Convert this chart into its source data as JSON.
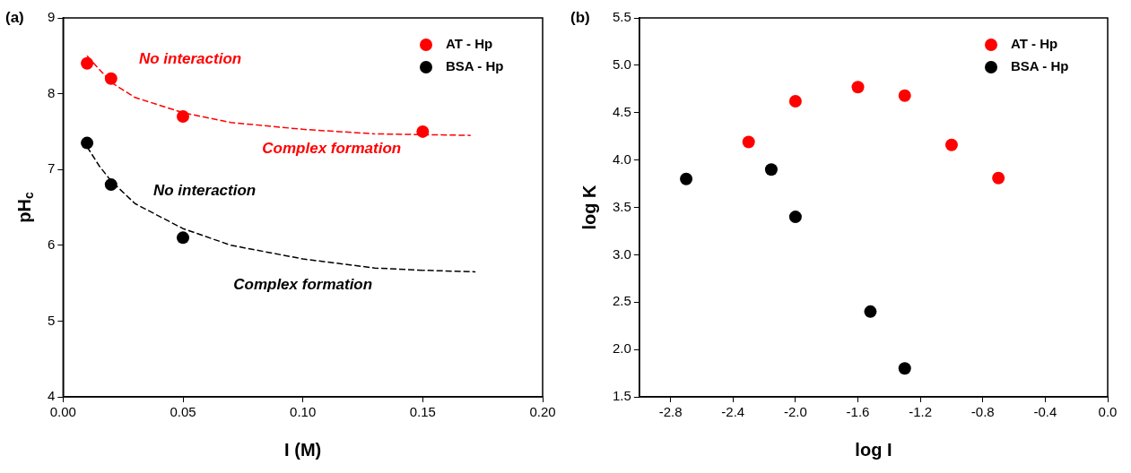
{
  "chart_data": [
    {
      "type": "scatter",
      "title": "(a)",
      "xlabel": "I (M)",
      "ylabel": "pH$_{c}$",
      "xlim": [
        0,
        0.2
      ],
      "xticks": [
        {
          "value": 0,
          "label": "0.00"
        },
        0.05,
        {
          "value": 0.1,
          "label": "0.10"
        },
        0.15,
        {
          "value": 0.2,
          "label": "0.20"
        }
      ],
      "ylim": [
        4,
        9
      ],
      "yticks": [
        4,
        5,
        6,
        7,
        8,
        9
      ],
      "grid": false,
      "legend": "top right",
      "marker": "circle",
      "series": [
        {
          "name": "AT - Hp",
          "color": "#ff0000",
          "x": [
            0.01,
            0.02,
            0.05,
            0.15
          ],
          "values": [
            8.4,
            8.2,
            7.7,
            7.5
          ]
        },
        {
          "name": "BSA - Hp",
          "color": "#000000",
          "x": [
            0.01,
            0.02,
            0.05
          ],
          "values": [
            7.35,
            6.8,
            6.1
          ]
        },
        {
          "type": "line",
          "color": "#ff0000",
          "line_style": "dashed",
          "marker": "none",
          "x": [
            0.01,
            0.02,
            0.03,
            0.05,
            0.07,
            0.1,
            0.13,
            0.17
          ],
          "values": [
            8.5,
            8.15,
            7.95,
            7.75,
            7.62,
            7.53,
            7.47,
            7.45
          ]
        },
        {
          "type": "line",
          "color": "#000000",
          "line_style": "dashed",
          "marker": "none",
          "x": [
            0.01,
            0.015,
            0.02,
            0.03,
            0.05,
            0.07,
            0.1,
            0.13,
            0.15,
            0.172
          ],
          "values": [
            7.3,
            7.05,
            6.85,
            6.55,
            6.22,
            6.0,
            5.82,
            5.7,
            5.67,
            5.65
          ]
        }
      ],
      "annotations": [
        "No interaction",
        "Complex formation",
        "No interaction",
        "Complex formation"
      ]
    },
    {
      "type": "scatter",
      "title": "(b)",
      "xlabel": "log I",
      "ylabel": "log K",
      "xlim": [
        -3,
        0
      ],
      "xticks": [
        -2.8,
        -2.4,
        {
          "value": -2,
          "label": "-2.0"
        },
        -1.6,
        -1.2,
        -0.8,
        -0.4,
        {
          "value": 0,
          "label": "0.0"
        }
      ],
      "ylim": [
        1.5,
        5.5
      ],
      "yticks": [
        1.5,
        {
          "value": 2,
          "label": "2.0"
        },
        2.5,
        {
          "value": 3,
          "label": "3.0"
        },
        3.5,
        {
          "value": 4,
          "label": "4.0"
        },
        4.5,
        {
          "value": 5,
          "label": "5.0"
        },
        5.5
      ],
      "grid": false,
      "legend": "top right",
      "marker": "circle",
      "series": [
        {
          "name": "AT - Hp",
          "color": "#ff0000",
          "x": [
            -2.3,
            -2.0,
            -1.6,
            -1.3,
            -1.0,
            -0.7
          ],
          "values": [
            4.19,
            4.62,
            4.77,
            4.68,
            4.16,
            3.81
          ]
        },
        {
          "name": "BSA - Hp",
          "color": "#000000",
          "x": [
            -2.7,
            -2.155,
            -2.0,
            -1.52,
            -1.3
          ],
          "values": [
            3.8,
            3.9,
            3.4,
            2.4,
            1.8
          ]
        }
      ]
    }
  ]
}
